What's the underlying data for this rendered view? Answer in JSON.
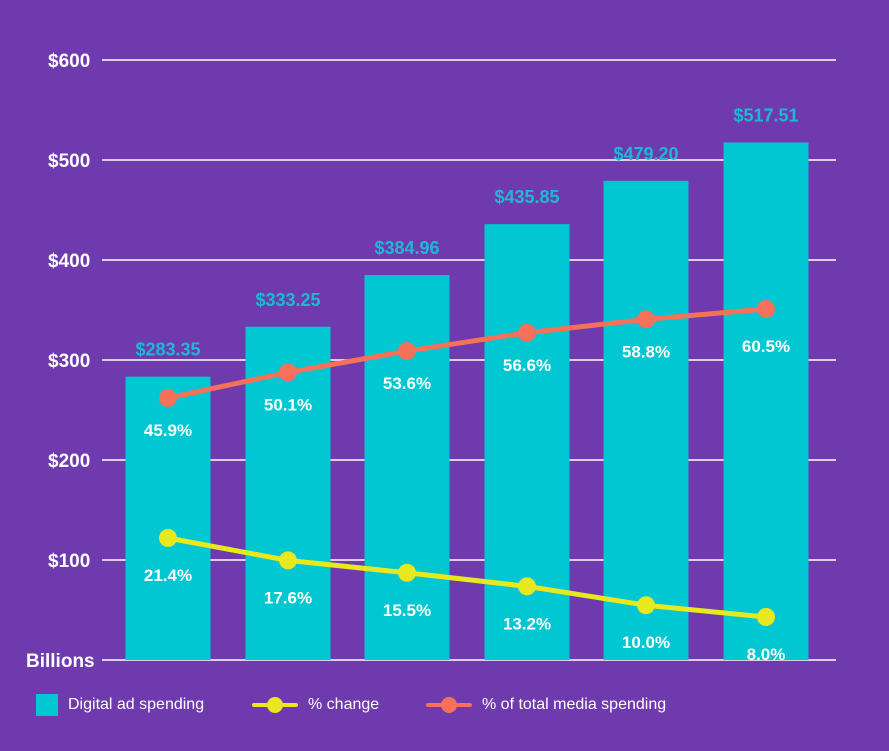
{
  "colors": {
    "background": "#6f3aad",
    "bars": "#00c7d1",
    "bar_labels": "#1fb8d4",
    "change_line": "#e8e81e",
    "share_line": "#f5715a",
    "grid": "#ffffff",
    "text": "#ffffff"
  },
  "chart_data": {
    "type": "bar",
    "categories": [
      "",
      "",
      "",
      "",
      "",
      ""
    ],
    "ylabel": "Billions",
    "ylim": [
      0,
      600
    ],
    "yticks": [
      100,
      200,
      300,
      400,
      500,
      600
    ],
    "ytick_labels": [
      "$100",
      "$200",
      "$300",
      "$400",
      "$500",
      "$600"
    ],
    "grid": true,
    "legend_position": "bottom",
    "series": [
      {
        "name": "Digital ad spending",
        "type": "bar",
        "values": [
          283.35,
          333.25,
          384.96,
          435.85,
          479.2,
          517.51
        ],
        "labels": [
          "$283.35",
          "$333.25",
          "$384.96",
          "$435.85",
          "$479.20",
          "$517.51"
        ]
      },
      {
        "name": "% change",
        "type": "line",
        "values": [
          21.4,
          17.6,
          15.5,
          13.2,
          10.0,
          8.0
        ],
        "labels": [
          "21.4%",
          "17.6%",
          "15.5%",
          "13.2%",
          "10.0%",
          "8.0%"
        ]
      },
      {
        "name": "% of total media spending",
        "type": "line",
        "values": [
          45.9,
          50.1,
          53.6,
          56.6,
          58.8,
          60.5
        ],
        "labels": [
          "45.9%",
          "50.1%",
          "53.6%",
          "56.6%",
          "58.8%",
          "60.5%"
        ]
      }
    ]
  },
  "legend": {
    "items": [
      "Digital ad spending",
      "% change",
      "% of total media spending"
    ]
  }
}
